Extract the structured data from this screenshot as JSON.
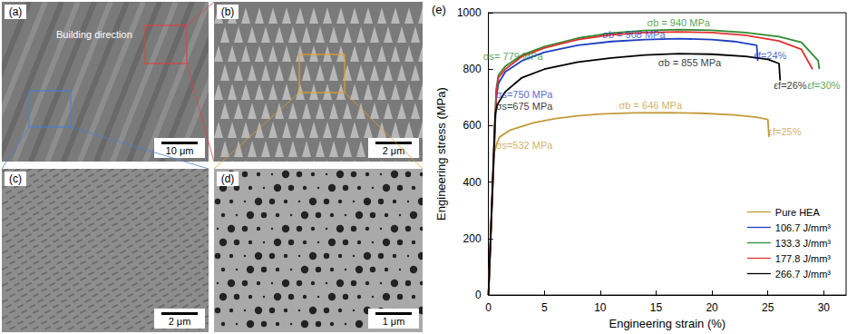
{
  "panels": [
    {
      "label": "(a)",
      "texts": [
        "Building direction"
      ],
      "scale_bar": "10 μm"
    },
    {
      "label": "(b)",
      "texts": [],
      "scale_bar": "2 μm"
    },
    {
      "label": "(c)",
      "texts": [],
      "scale_bar": "2 μm"
    },
    {
      "label": "(d)",
      "texts": [],
      "scale_bar": "1 μm"
    }
  ],
  "chart_data": {
    "type": "line",
    "panel_label": "(e)",
    "x_label": "Engineering strain (%)",
    "y_label": "Engineering stress (MPa)",
    "xlim": [
      0,
      32
    ],
    "xticks": [
      0,
      5,
      10,
      15,
      20,
      25,
      30
    ],
    "ylim": [
      0,
      1000
    ],
    "yticks": [
      0,
      200,
      400,
      600,
      800,
      1000
    ],
    "grid": false,
    "legend": "lower right",
    "series": [
      {
        "name": "Pure HEA",
        "color": "#c49a3a",
        "x": [
          0,
          0.5,
          0.7,
          1,
          2,
          4,
          6,
          8,
          10,
          13,
          16,
          19,
          22,
          24,
          25,
          25.1
        ],
        "values": [
          0,
          500,
          532,
          560,
          585,
          610,
          625,
          635,
          641,
          645,
          646,
          644,
          638,
          630,
          622,
          560
        ]
      },
      {
        "name": "106.7 J/mm³",
        "color": "#1f3fbf",
        "x": [
          0,
          0.7,
          0.9,
          1.5,
          3,
          5,
          8,
          11,
          14,
          17,
          20,
          22,
          24,
          24.1
        ],
        "values": [
          0,
          700,
          750,
          790,
          830,
          860,
          885,
          898,
          905,
          908,
          905,
          898,
          885,
          830
        ]
      },
      {
        "name": "133.3 J/mm³",
        "color": "#2e8b2e",
        "x": [
          0,
          0.7,
          0.9,
          1.5,
          3,
          5,
          8,
          11,
          14,
          17,
          20,
          23,
          26,
          28,
          29.5,
          29.6
        ],
        "values": [
          0,
          730,
          779,
          810,
          850,
          880,
          910,
          928,
          937,
          940,
          938,
          930,
          915,
          895,
          830,
          800
        ]
      },
      {
        "name": "177.8 J/mm³",
        "color": "#e03030",
        "x": [
          0,
          0.7,
          0.9,
          1.5,
          3,
          5,
          8,
          11,
          14,
          17,
          20,
          23,
          26,
          28,
          29
        ],
        "values": [
          0,
          720,
          770,
          800,
          845,
          875,
          905,
          922,
          930,
          932,
          930,
          920,
          900,
          870,
          800
        ]
      },
      {
        "name": "266.7 J/mm³",
        "color": "#000000",
        "x": [
          0,
          0.6,
          0.8,
          1.5,
          3,
          5,
          8,
          11,
          14,
          17,
          20,
          23,
          25,
          26,
          26.1
        ],
        "values": [
          0,
          640,
          675,
          720,
          770,
          800,
          825,
          840,
          850,
          855,
          853,
          845,
          835,
          820,
          760
        ]
      }
    ],
    "annotations": [
      {
        "text": "σs= 779 MPa",
        "x": 2.2,
        "y": 845,
        "color": "#2e8b2e"
      },
      {
        "text": "σb = 940 MPa",
        "x": 17,
        "y": 965,
        "color": "#2e8b2e"
      },
      {
        "text": "σb = 908 MPa",
        "x": 13,
        "y": 922,
        "color": "#1f3fbf"
      },
      {
        "text": "σb = 855 MPa",
        "x": 18,
        "y": 822,
        "color": "#000000"
      },
      {
        "text": "σs=750 MPa",
        "x": 3.2,
        "y": 712,
        "color": "#1f3fbf"
      },
      {
        "text": "σs=675 MPa",
        "x": 3.2,
        "y": 668,
        "color": "#000000"
      },
      {
        "text": "σs=532 MPa",
        "x": 3.2,
        "y": 530,
        "color": "#c49a3a"
      },
      {
        "text": "σb = 646 MPa",
        "x": 14.5,
        "y": 672,
        "color": "#c49a3a"
      },
      {
        "text": "εf=24%",
        "x": 25.2,
        "y": 850,
        "color": "#1f3fbf"
      },
      {
        "text": "εf=26%",
        "x": 27,
        "y": 742,
        "color": "#000000"
      },
      {
        "text": "εf=30%",
        "x": 30,
        "y": 742,
        "color": "#2e8b2e"
      },
      {
        "text": "εf=25%",
        "x": 26.5,
        "y": 580,
        "color": "#c49a3a"
      }
    ]
  }
}
